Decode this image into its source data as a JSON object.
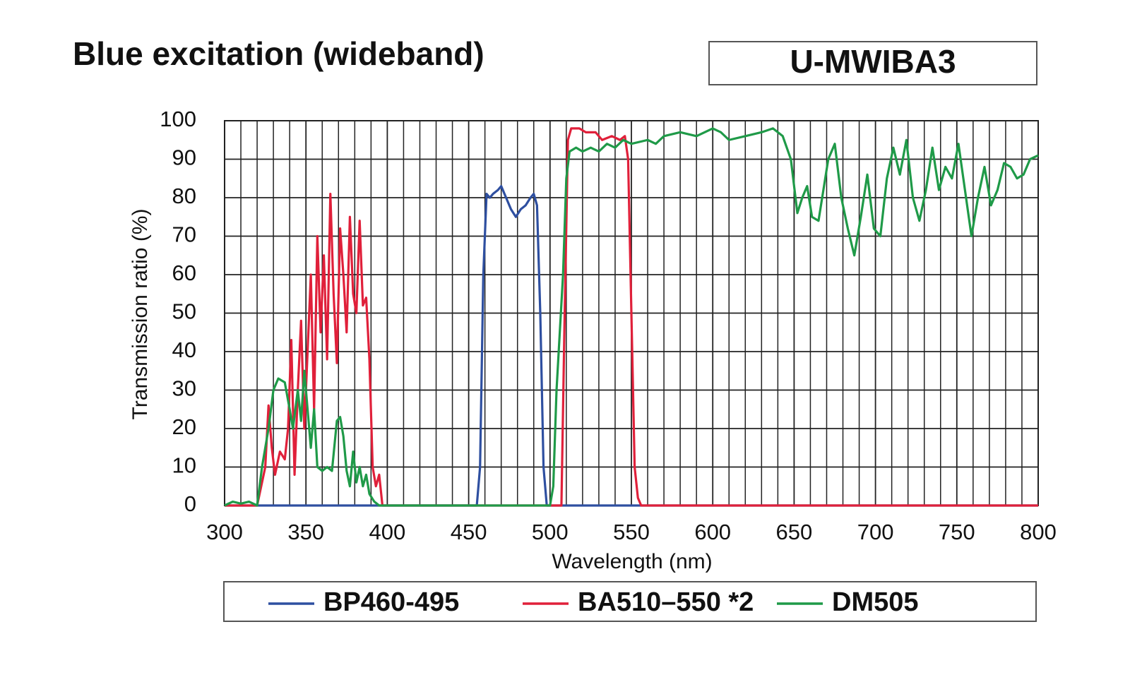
{
  "chart_data": {
    "type": "line",
    "title": "Blue excitation (wideband)",
    "subtitle": "U-MWIBA3",
    "x_label": "Wavelength (nm)",
    "y_label": "Transmission ratio (%)",
    "xlim": [
      300,
      800
    ],
    "ylim": [
      0,
      100
    ],
    "xticks": [
      300,
      350,
      400,
      450,
      500,
      550,
      600,
      650,
      700,
      750,
      800
    ],
    "x_minor_ticks": [
      310,
      320,
      330,
      340,
      360,
      370,
      380,
      390,
      410,
      420,
      430,
      440,
      460,
      470,
      480,
      490,
      510,
      520,
      530,
      540,
      560,
      570,
      580,
      590,
      610,
      620,
      630,
      640,
      660,
      670,
      680,
      690,
      710,
      720,
      730,
      740,
      760,
      770,
      780,
      790
    ],
    "yticks": [
      0,
      10,
      20,
      30,
      40,
      50,
      60,
      70,
      80,
      90,
      100
    ],
    "grid": true,
    "legend": "bottom",
    "series": [
      {
        "name": "BP460-495",
        "color": "#2e4fa0",
        "x": [
          300,
          455,
          457,
          459,
          461,
          463,
          465,
          468,
          470,
          473,
          476,
          479,
          482,
          485,
          488,
          490,
          492,
          494,
          496,
          498,
          800
        ],
        "values": [
          0,
          0,
          10,
          60,
          81,
          80,
          81,
          82,
          83,
          80,
          77,
          75,
          77,
          78,
          80,
          81,
          78,
          50,
          10,
          0,
          0
        ]
      },
      {
        "name": "BA510–550 *2",
        "color": "#e0203a",
        "x": [
          300,
          320,
          325,
          327,
          329,
          331,
          334,
          337,
          339,
          341,
          343,
          345,
          347,
          349,
          351,
          353,
          355,
          357,
          359,
          361,
          363,
          365,
          367,
          369,
          371,
          373,
          375,
          377,
          379,
          381,
          383,
          385,
          387,
          389,
          391,
          393,
          395,
          397,
          507,
          509,
          511,
          513,
          518,
          522,
          528,
          532,
          538,
          543,
          546,
          548,
          550,
          552,
          554,
          556,
          800
        ],
        "values": [
          0,
          0,
          10,
          26,
          15,
          8,
          14,
          12,
          20,
          43,
          8,
          30,
          48,
          20,
          40,
          60,
          25,
          70,
          45,
          65,
          38,
          81,
          55,
          37,
          72,
          60,
          45,
          75,
          55,
          50,
          74,
          52,
          54,
          38,
          10,
          5,
          8,
          0,
          0,
          50,
          95,
          98,
          98,
          97,
          97,
          95,
          96,
          95,
          96,
          90,
          50,
          10,
          2,
          0,
          0
        ]
      },
      {
        "name": "DM505",
        "color": "#1f9a48",
        "x": [
          300,
          305,
          310,
          315,
          320,
          323,
          327,
          330,
          333,
          337,
          340,
          342,
          345,
          347,
          349,
          351,
          353,
          355,
          357,
          360,
          363,
          366,
          369,
          371,
          373,
          375,
          377,
          379,
          381,
          383,
          385,
          387,
          389,
          392,
          395,
          500,
          502,
          504,
          506,
          508,
          510,
          512,
          516,
          520,
          525,
          530,
          535,
          540,
          545,
          550,
          560,
          565,
          570,
          580,
          590,
          600,
          605,
          610,
          620,
          630,
          637,
          643,
          648,
          652,
          655,
          658,
          661,
          665,
          668,
          671,
          675,
          679,
          683,
          687,
          691,
          695,
          699,
          703,
          707,
          711,
          715,
          719,
          723,
          727,
          731,
          735,
          739,
          743,
          747,
          751,
          755,
          759,
          763,
          767,
          771,
          775,
          779,
          783,
          787,
          791,
          795,
          800
        ],
        "values": [
          0,
          1,
          0.5,
          1,
          0,
          10,
          20,
          30,
          33,
          32,
          25,
          20,
          30,
          22,
          35,
          25,
          15,
          25,
          10,
          9,
          10,
          9,
          22,
          23,
          18,
          9,
          5,
          14,
          6,
          10,
          5,
          8,
          3,
          1,
          0,
          0,
          5,
          30,
          45,
          60,
          85,
          92,
          93,
          92,
          93,
          92,
          94,
          93,
          95,
          94,
          95,
          94,
          96,
          97,
          96,
          98,
          97,
          95,
          96,
          97,
          98,
          96,
          90,
          76,
          80,
          83,
          75,
          74,
          82,
          90,
          94,
          80,
          72,
          65,
          75,
          86,
          72,
          70,
          85,
          93,
          86,
          95,
          80,
          74,
          82,
          93,
          82,
          88,
          85,
          94,
          82,
          70,
          80,
          88,
          78,
          82,
          89,
          88,
          85,
          86,
          90,
          91
        ]
      }
    ]
  }
}
